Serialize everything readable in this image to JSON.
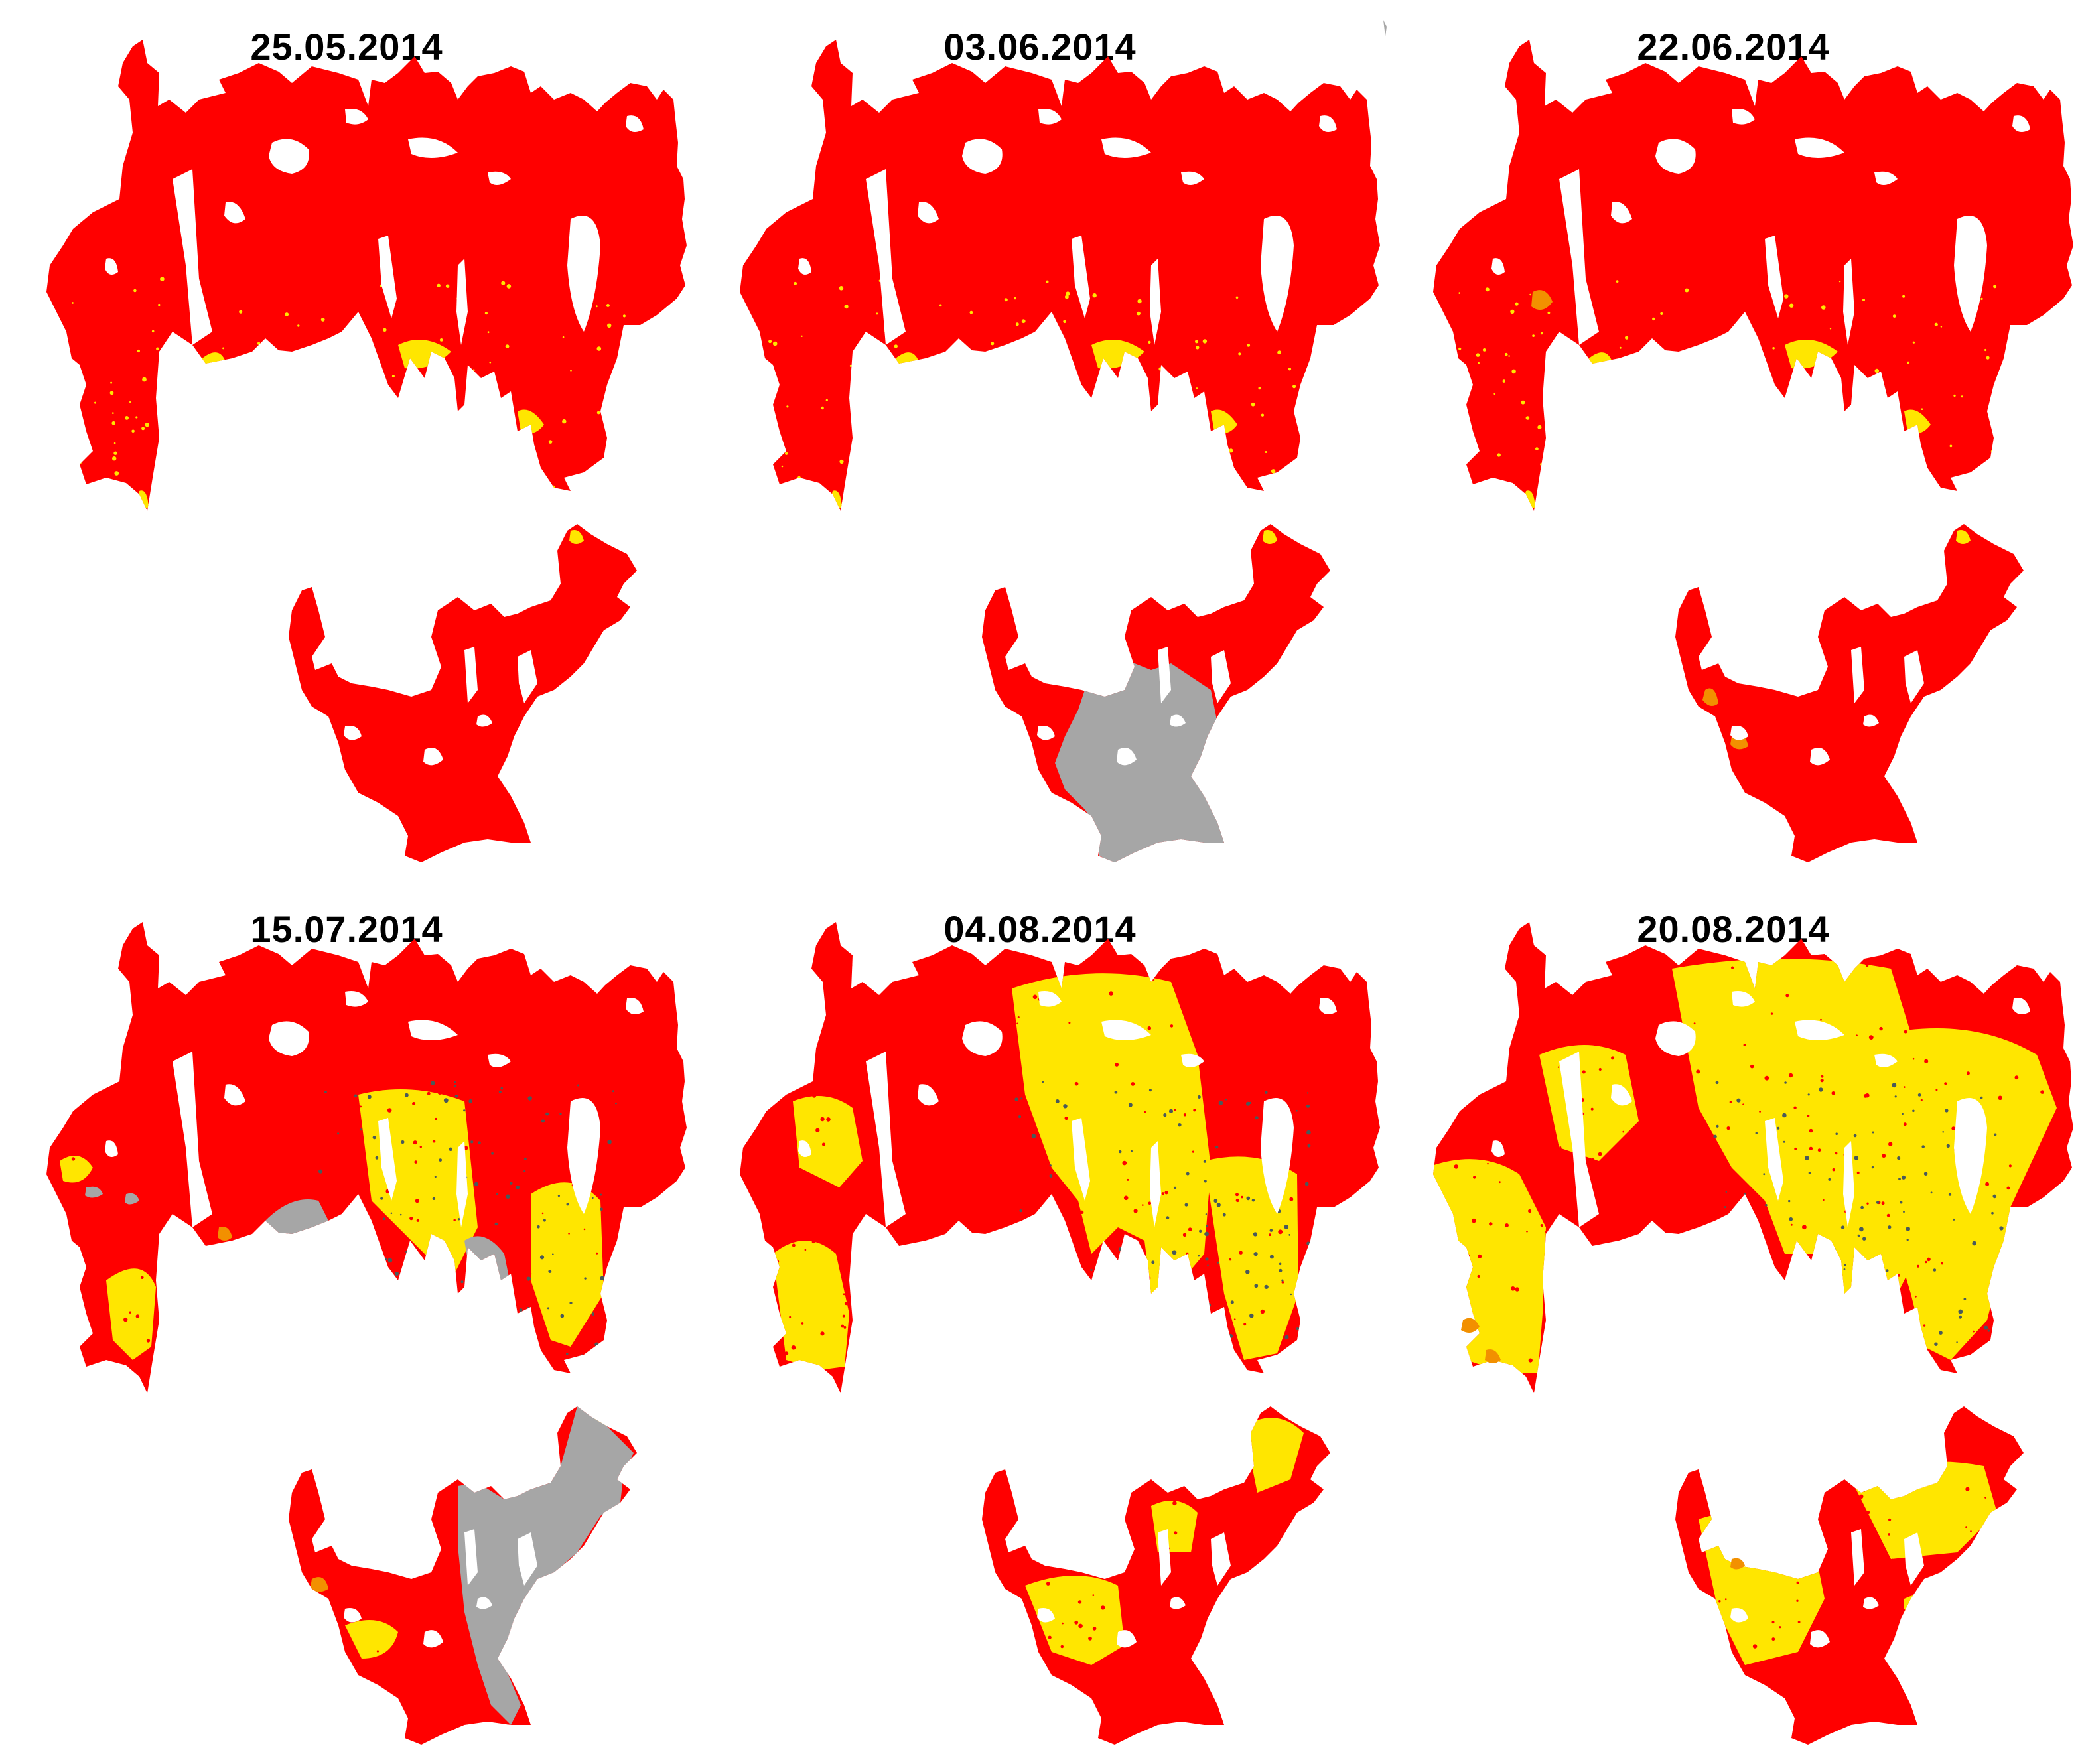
{
  "colors": {
    "red": "#ff0000",
    "yellow": "#ffe600",
    "orange": "#f29000",
    "gray": "#a6a6a6",
    "dark": "#4a5a5a",
    "background": "#ffffff"
  },
  "panels": [
    {
      "date": "25.05.2014",
      "state": "red",
      "lower_cloud": false,
      "upper_cloud": false
    },
    {
      "date": "03.06.2014",
      "state": "red",
      "lower_cloud": true,
      "upper_cloud": false
    },
    {
      "date": "22.06.2014",
      "state": "red",
      "lower_cloud": false,
      "upper_cloud": false
    },
    {
      "date": "15.07.2014",
      "state": "mixed",
      "lower_cloud": true,
      "upper_cloud": true
    },
    {
      "date": "04.08.2014",
      "state": "melt",
      "lower_cloud": false,
      "upper_cloud": false
    },
    {
      "date": "20.08.2014",
      "state": "melt-strong",
      "lower_cloud": false,
      "upper_cloud": false
    }
  ]
}
